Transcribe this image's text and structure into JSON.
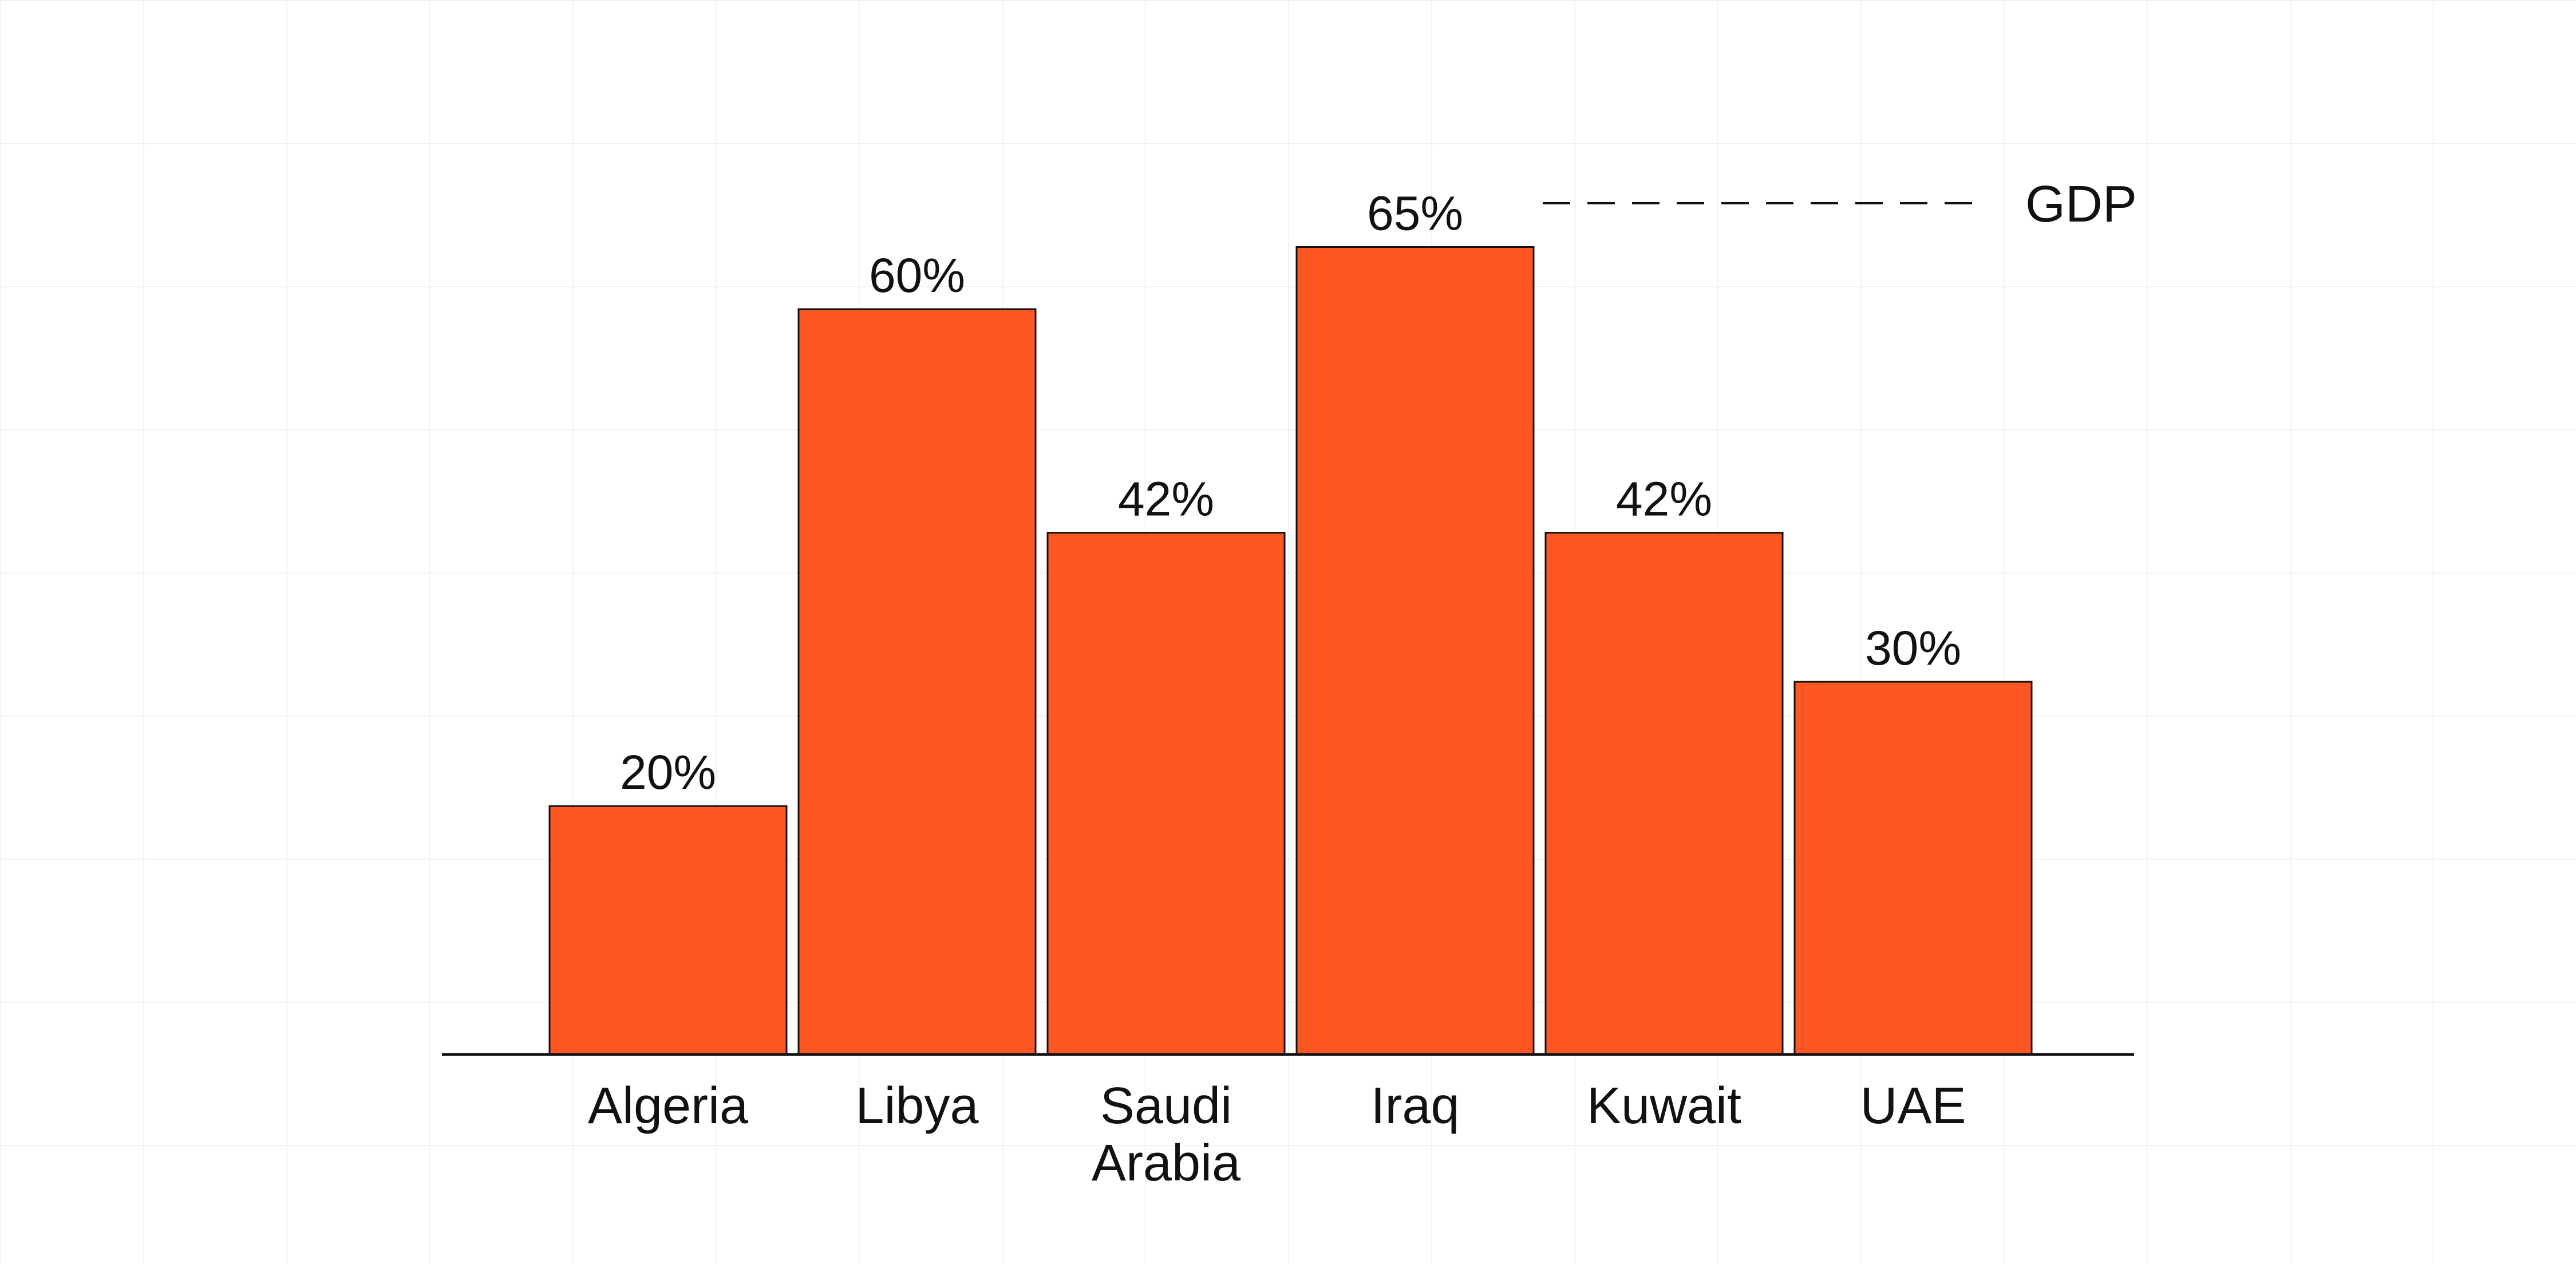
{
  "chart_data": {
    "type": "bar",
    "categories": [
      "Algeria",
      "Libya",
      "Saudi Arabia",
      "Iraq",
      "Kuwait",
      "UAE"
    ],
    "category_label_lines": [
      [
        "Algeria"
      ],
      [
        "Libya"
      ],
      [
        "Saudi",
        "Arabia"
      ],
      [
        "Iraq"
      ],
      [
        "Kuwait"
      ],
      [
        "UAE"
      ]
    ],
    "values": [
      20,
      60,
      42,
      65,
      42,
      30
    ],
    "data_labels": [
      "20%",
      "60%",
      "42%",
      "65%",
      "42%",
      "30%"
    ],
    "unit": "%",
    "title": "",
    "xlabel": "",
    "ylabel": "",
    "ylim": [
      0,
      70
    ],
    "grid": true,
    "reference_line": {
      "label": "GDP",
      "style": "dashed",
      "value": 68
    },
    "colors": {
      "bar": "#FF5722",
      "bar_edge": "#111111",
      "axis": "#111111",
      "text": "#111111"
    }
  }
}
